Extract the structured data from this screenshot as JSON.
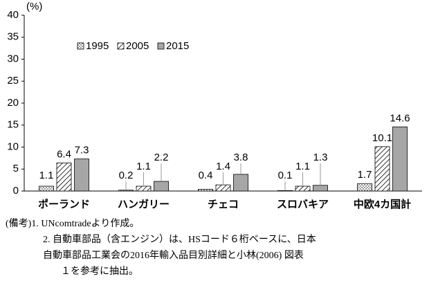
{
  "chart_data": {
    "type": "bar",
    "y_unit": "(%)",
    "categories": [
      "ポーランド",
      "ハンガリー",
      "チェコ",
      "スロバキア",
      "中欧4カ国計"
    ],
    "series": [
      {
        "name": "1995",
        "color": "#ffffff",
        "pattern": "dots",
        "values": [
          1.1,
          0.2,
          0.4,
          0.1,
          1.7
        ]
      },
      {
        "name": "2005",
        "color": "#ffffff",
        "pattern": "hatch",
        "values": [
          6.4,
          1.1,
          1.4,
          1.1,
          10.1
        ]
      },
      {
        "name": "2015",
        "color": "#a6a6a6",
        "pattern": "solid",
        "values": [
          7.3,
          2.2,
          3.8,
          1.3,
          14.6
        ]
      }
    ],
    "ylim": [
      0,
      40
    ],
    "yticks": [
      0,
      5,
      10,
      15,
      20,
      25,
      30,
      35,
      40
    ],
    "grid": false,
    "legend": "upper-left",
    "notes": [
      "(備考)1.  UNcomtradeより作成。",
      "2.  自動車部品（含エンジン）は、HSコード６桁ベースに、日本",
      "自動車部品工業会の2016年輸入品目別詳細と小林(2006) 図表",
      "１を参考に抽出。"
    ]
  }
}
